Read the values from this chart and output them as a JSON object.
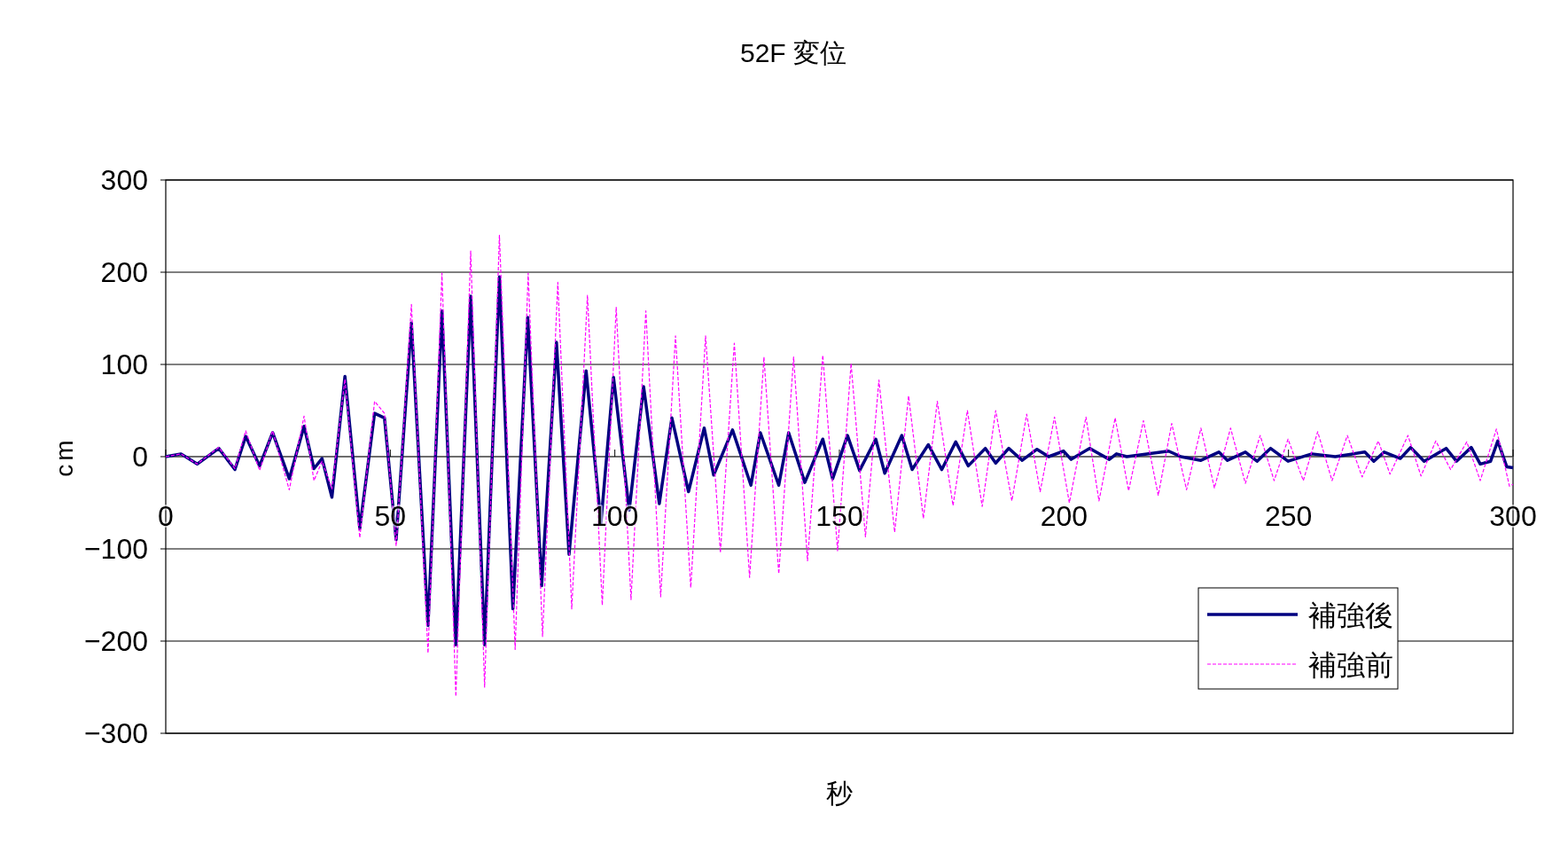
{
  "chart_data": {
    "type": "line",
    "title": "52F 変位",
    "xlabel": "秒",
    "ylabel": "cm",
    "xlim": [
      0,
      300
    ],
    "xticks": [
      0,
      50,
      100,
      150,
      200,
      250,
      300
    ],
    "ylim": [
      -300,
      300
    ],
    "yticks": [
      -300,
      -200,
      -100,
      0,
      100,
      200,
      300
    ],
    "grid": "y",
    "legend": "bottom right",
    "series": [
      {
        "name": "補強後",
        "color": "#000080",
        "line_style": "solid",
        "x": [
          0,
          3.4,
          7,
          11.8,
          15.4,
          17.8,
          20.9,
          23.8,
          27.5,
          30.8,
          33,
          34.8,
          37,
          39.9,
          43.2,
          46.5,
          48.7,
          51.3,
          54.7,
          58.4,
          61.5,
          64.6,
          67.9,
          71,
          74.3,
          77.3,
          80.6,
          83.7,
          87,
          89.8,
          93.6,
          96.9,
          99.7,
          103.2,
          106.4,
          109.9,
          112.7,
          116.4,
          119.9,
          122,
          126.2,
          130.3,
          132.4,
          136.5,
          138.7,
          142.3,
          146.3,
          148.5,
          151.8,
          154.5,
          158.1,
          160.1,
          163.9,
          166.2,
          169.8,
          172.8,
          175.9,
          178.7,
          182.5,
          184.8,
          187.7,
          190.7,
          194,
          196.6,
          199.9,
          201.6,
          205.7,
          210.1,
          211.7,
          214,
          223.3,
          226,
          230.5,
          234.5,
          236.4,
          240.4,
          243,
          246,
          249.9,
          255.2,
          260.4,
          267,
          269,
          271.3,
          274.9,
          277.2,
          280.2,
          285.1,
          287.4,
          290.7,
          292.7,
          295,
          296.6,
          298.6,
          300
        ],
        "values": [
          0,
          3,
          -8,
          9,
          -14,
          22,
          -10,
          26,
          -24,
          33,
          -13,
          -2,
          -44,
          87,
          -78,
          47,
          42,
          -90,
          145,
          -183,
          158,
          -204,
          174,
          -204,
          195,
          -165,
          151,
          -140,
          124,
          -106,
          93,
          -72,
          86,
          -58,
          76,
          -51,
          42,
          -38,
          31,
          -20,
          29,
          -31,
          26,
          -31,
          26,
          -28,
          19,
          -24,
          23,
          -15,
          19,
          -18,
          23,
          -14,
          13,
          -14,
          16,
          -10,
          9,
          -7,
          9,
          -4,
          8,
          0,
          6,
          -3,
          9,
          -3,
          3,
          0,
          6,
          0,
          -4,
          5,
          -4,
          5,
          -5,
          9,
          -5,
          3,
          0,
          5,
          -5,
          5,
          -2,
          10,
          -5,
          9,
          -5,
          10,
          -8,
          -5,
          17,
          -11,
          -12
        ]
      },
      {
        "name": "補強前",
        "color": "#ff00ff",
        "line_style": "dashed",
        "x": [
          0,
          3.4,
          7,
          11.8,
          15.4,
          17.8,
          20.9,
          23.8,
          27.5,
          30.8,
          33,
          34.8,
          37,
          39.9,
          43.2,
          46.5,
          48.7,
          51.3,
          54.7,
          58.4,
          61.5,
          64.6,
          67.9,
          71,
          74.3,
          77.8,
          80.7,
          83.9,
          87.3,
          90.4,
          93.9,
          97.2,
          100.3,
          103.6,
          106.9,
          110.2,
          113.5,
          116.9,
          120.2,
          123.5,
          126.6,
          130,
          133.2,
          136.5,
          139.8,
          142.9,
          146.3,
          149.6,
          152.6,
          155.8,
          158.8,
          162.3,
          165.4,
          168.7,
          171.8,
          175.3,
          178.5,
          181.8,
          184.8,
          188.4,
          191.7,
          194.7,
          197.9,
          201.2,
          204.9,
          207.8,
          211.4,
          214.4,
          217.7,
          221,
          224,
          227.3,
          230.5,
          233.5,
          237.1,
          240.4,
          243.7,
          246.8,
          249.9,
          253.3,
          256.5,
          259.7,
          263.1,
          266.4,
          270,
          272.6,
          276.6,
          279.5,
          282.8,
          286.1,
          289.7,
          292.7,
          296.3,
          299.2,
          300
        ],
        "values": [
          0,
          3,
          -8,
          10,
          -13,
          28,
          -15,
          28,
          -36,
          44,
          -26,
          -5,
          -35,
          84,
          -88,
          60,
          47,
          -97,
          165,
          -213,
          199,
          -260,
          223,
          -250,
          240,
          -209,
          199,
          -195,
          189,
          -165,
          175,
          -161,
          162,
          -155,
          158,
          -152,
          131,
          -142,
          131,
          -104,
          123,
          -131,
          108,
          -127,
          108,
          -113,
          110,
          -102,
          101,
          -87,
          83,
          -82,
          66,
          -67,
          60,
          -53,
          50,
          -54,
          50,
          -48,
          46,
          -38,
          43,
          -50,
          43,
          -48,
          42,
          -37,
          39,
          -42,
          36,
          -36,
          31,
          -34,
          31,
          -29,
          23,
          -26,
          19,
          -26,
          27,
          -26,
          23,
          -22,
          17,
          -19,
          23,
          -21,
          17,
          -14,
          16,
          -26,
          30,
          -32,
          -30
        ]
      }
    ]
  }
}
